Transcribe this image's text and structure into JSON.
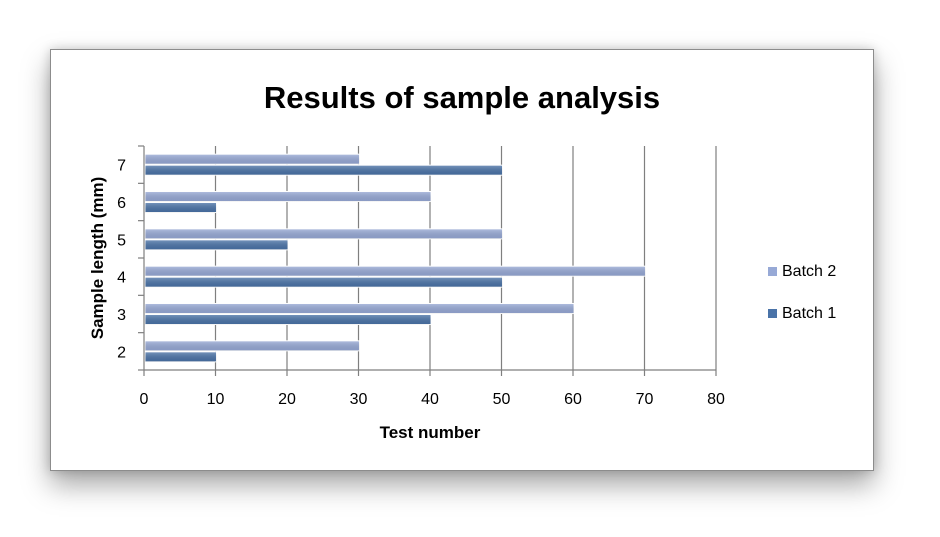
{
  "chart_data": {
    "type": "bar",
    "orientation": "horizontal",
    "title": "Results of sample analysis",
    "xlabel": "Test number",
    "ylabel": "Sample length (mm)",
    "categories": [
      "2",
      "3",
      "4",
      "5",
      "6",
      "7"
    ],
    "xlim": [
      0,
      80
    ],
    "xticks": [
      "0",
      "10",
      "20",
      "30",
      "40",
      "50",
      "60",
      "70",
      "80"
    ],
    "grid": "vertical",
    "legend_position": "right",
    "series": [
      {
        "name": "Batch 1",
        "color": "#4a73a8",
        "values": [
          10,
          40,
          50,
          20,
          10,
          50
        ]
      },
      {
        "name": "Batch 2",
        "color": "#97a9d6",
        "values": [
          30,
          60,
          70,
          50,
          40,
          30
        ]
      }
    ]
  }
}
